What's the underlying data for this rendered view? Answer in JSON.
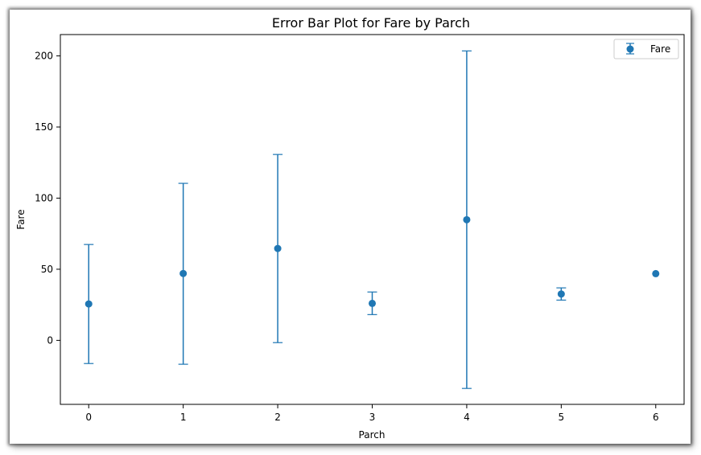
{
  "chart_data": {
    "type": "scatter",
    "title": "Error Bar Plot for Fare by Parch",
    "xlabel": "Parch",
    "ylabel": "Fare",
    "x": [
      0,
      1,
      2,
      3,
      4,
      5,
      6
    ],
    "xlim": [
      -0.3,
      6.3
    ],
    "ylim": [
      -45,
      215
    ],
    "xticks": [
      0,
      1,
      2,
      3,
      4,
      5,
      6
    ],
    "yticks": [
      0,
      50,
      100,
      150,
      200
    ],
    "grid": false,
    "legend_position": "top-right",
    "series": [
      {
        "name": "Fare",
        "color": "#1f77b4",
        "marker": "circle",
        "values": [
          25.6,
          47.0,
          64.6,
          26.0,
          84.8,
          32.6,
          46.9
        ],
        "error_lower": [
          -16.3,
          -16.8,
          -1.6,
          18.1,
          -33.8,
          28.3,
          46.9
        ],
        "error_upper": [
          67.4,
          110.4,
          130.7,
          34.0,
          203.5,
          36.9,
          46.9
        ]
      }
    ]
  }
}
